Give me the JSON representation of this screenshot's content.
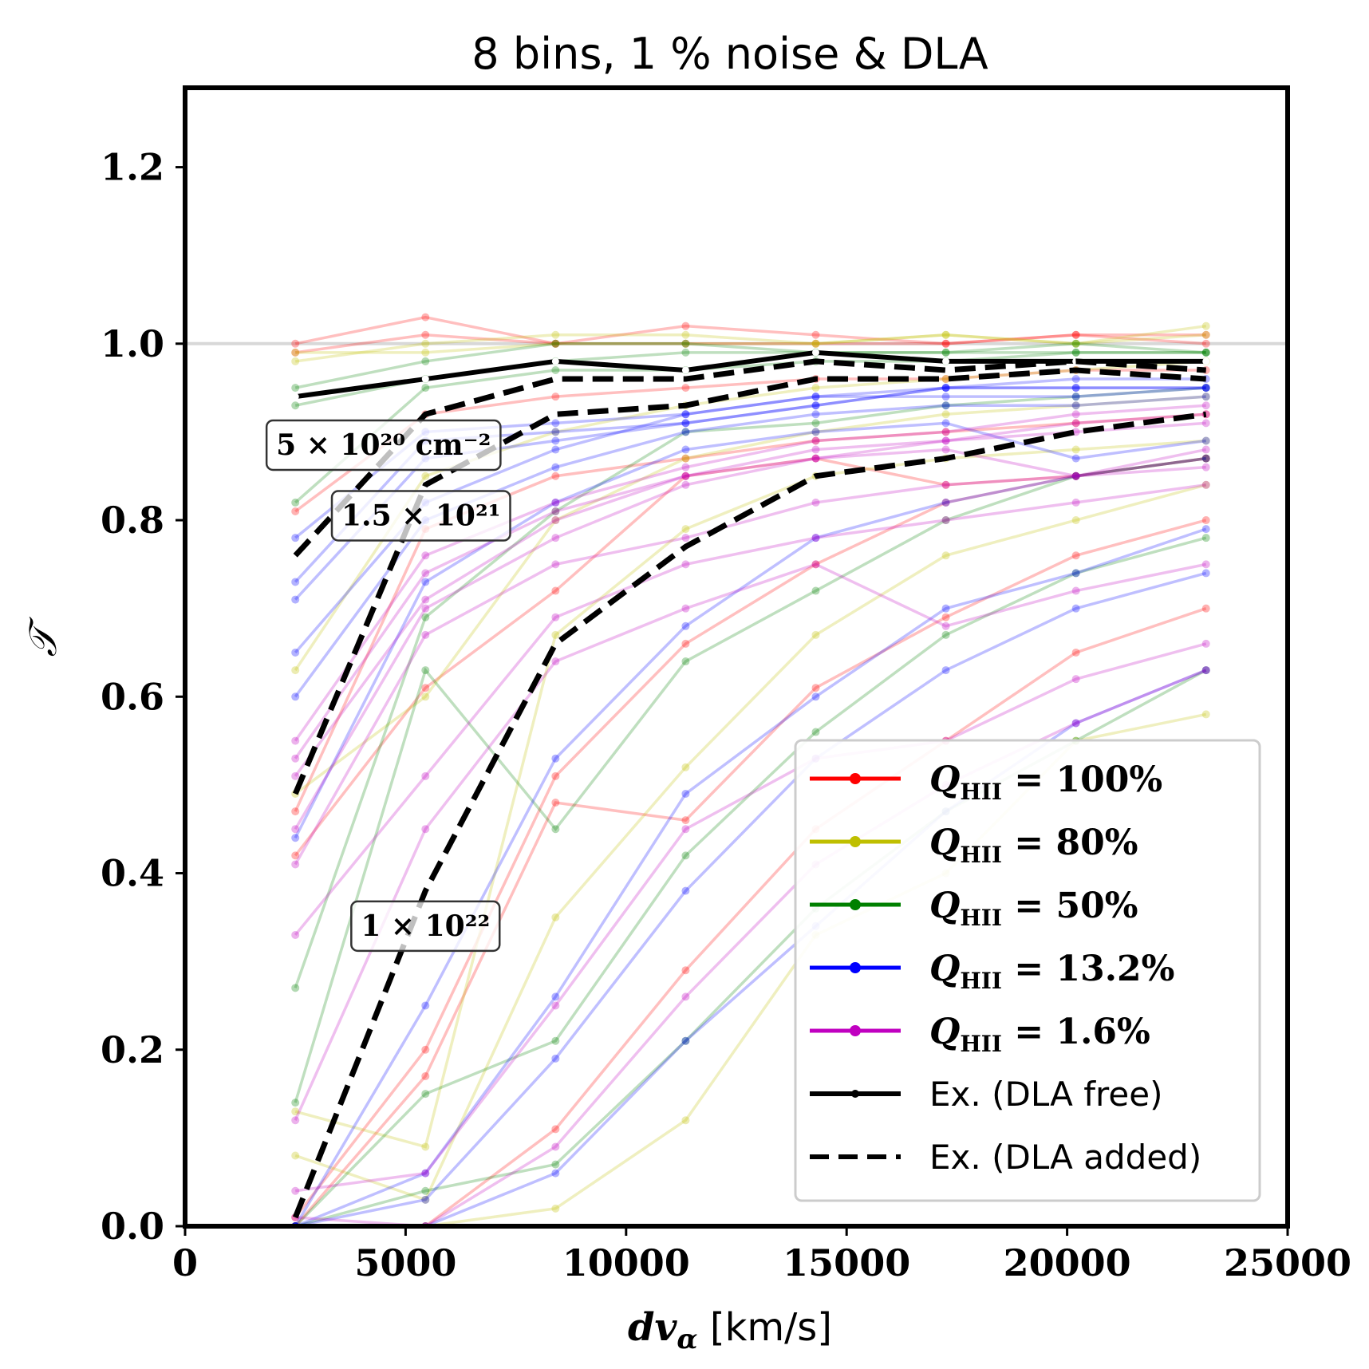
{
  "chart_data": {
    "type": "line",
    "title": "8 bins, 1 % noise & DLA",
    "xlabel": "dv_α [km/s]",
    "ylabel": "𝒯",
    "xlim": [
      0,
      25000
    ],
    "ylim": [
      0,
      1.29
    ],
    "xticks": [
      0,
      5000,
      10000,
      15000,
      20000,
      25000
    ],
    "yticks": [
      0.0,
      0.2,
      0.4,
      0.6,
      0.8,
      1.0,
      1.2
    ],
    "xtick_labels": [
      "0",
      "5000",
      "10000",
      "15000",
      "20000",
      "25000"
    ],
    "ytick_labels": [
      "0.0",
      "0.2",
      "0.4",
      "0.6",
      "0.8",
      "1.0",
      "1.2"
    ],
    "reference_line_y": 1.0,
    "grid": false,
    "legend_position": "lower-right",
    "x": [
      2500,
      5450,
      8400,
      11350,
      14300,
      17250,
      20200,
      23150
    ],
    "series": [
      {
        "name": "Q_HII = 100%",
        "legend": "Q",
        "legend_sub": "HII",
        "legend_rest": " = 100%",
        "color": "#ff0000",
        "faint": true,
        "lines": [
          [
            1.0,
            1.03,
            1.0,
            1.02,
            1.01,
            1.0,
            1.01,
            1.0
          ],
          [
            0.99,
            1.01,
            1.0,
            1.0,
            1.0,
            1.0,
            1.01,
            1.01
          ],
          [
            0.81,
            0.92,
            0.94,
            0.95,
            0.96,
            0.96,
            0.97,
            0.97
          ],
          [
            0.47,
            0.79,
            0.85,
            0.87,
            0.89,
            0.9,
            0.91,
            0.92
          ],
          [
            0.42,
            0.61,
            0.72,
            0.85,
            0.87,
            0.84,
            0.85,
            0.87
          ],
          [
            0.01,
            0.2,
            0.51,
            0.66,
            0.75,
            0.82,
            0.85,
            0.87
          ],
          [
            0.0,
            0.17,
            0.48,
            0.46,
            0.61,
            0.69,
            0.76,
            0.8
          ],
          [
            0.0,
            0.0,
            0.11,
            0.29,
            0.45,
            0.55,
            0.65,
            0.7
          ]
        ]
      },
      {
        "name": "Q_HII = 80%",
        "legend": "Q",
        "legend_sub": "HII",
        "legend_rest": " = 80%",
        "color": "#bfbf00",
        "faint": true,
        "lines": [
          [
            0.98,
            1.0,
            1.01,
            1.01,
            1.0,
            1.01,
            1.0,
            1.01
          ],
          [
            0.99,
            0.99,
            1.0,
            1.0,
            1.0,
            1.01,
            1.0,
            1.02
          ],
          [
            0.63,
            0.85,
            0.9,
            0.93,
            0.95,
            0.96,
            0.97,
            0.98
          ],
          [
            0.49,
            0.6,
            0.8,
            0.87,
            0.9,
            0.92,
            0.93,
            0.94
          ],
          [
            0.13,
            0.09,
            0.67,
            0.79,
            0.85,
            0.87,
            0.88,
            0.89
          ],
          [
            0.08,
            0.03,
            0.35,
            0.52,
            0.67,
            0.76,
            0.8,
            0.84
          ],
          [
            0.0,
            0.0,
            0.02,
            0.12,
            0.33,
            0.4,
            0.55,
            0.58
          ]
        ]
      },
      {
        "name": "Q_HII = 50%",
        "legend": "Q",
        "legend_sub": "HII",
        "legend_rest": " = 50%",
        "color": "#008000",
        "faint": true,
        "lines": [
          [
            0.95,
            0.98,
            1.0,
            1.0,
            0.99,
            0.99,
            1.0,
            0.99
          ],
          [
            0.93,
            0.96,
            0.98,
            0.99,
            0.99,
            0.99,
            0.99,
            0.99
          ],
          [
            0.82,
            0.95,
            0.97,
            0.97,
            0.98,
            0.98,
            0.99,
            0.99
          ],
          [
            0.27,
            0.69,
            0.81,
            0.9,
            0.91,
            0.93,
            0.94,
            0.95
          ],
          [
            0.14,
            0.63,
            0.45,
            0.64,
            0.72,
            0.8,
            0.85,
            0.87
          ],
          [
            0.0,
            0.15,
            0.21,
            0.42,
            0.56,
            0.67,
            0.74,
            0.78
          ],
          [
            0.0,
            0.04,
            0.07,
            0.21,
            0.36,
            0.47,
            0.55,
            0.63
          ]
        ]
      },
      {
        "name": "Q_HII = 13.2%",
        "legend": "Q",
        "legend_sub": "HII",
        "legend_rest": " = 13.2%",
        "color": "#0000ff",
        "faint": true,
        "lines": [
          [
            0.78,
            0.9,
            0.91,
            0.92,
            0.94,
            0.95,
            0.96,
            0.96
          ],
          [
            0.73,
            0.89,
            0.9,
            0.91,
            0.93,
            0.95,
            0.95,
            0.95
          ],
          [
            0.71,
            0.87,
            0.89,
            0.91,
            0.93,
            0.95,
            0.95,
            0.95
          ],
          [
            0.65,
            0.82,
            0.88,
            0.92,
            0.94,
            0.94,
            0.94,
            0.95
          ],
          [
            0.6,
            0.8,
            0.86,
            0.9,
            0.92,
            0.93,
            0.93,
            0.94
          ],
          [
            0.44,
            0.73,
            0.82,
            0.88,
            0.9,
            0.91,
            0.87,
            0.89
          ],
          [
            0.0,
            0.25,
            0.53,
            0.68,
            0.78,
            0.82,
            0.85,
            0.87
          ],
          [
            0.0,
            0.06,
            0.26,
            0.49,
            0.6,
            0.7,
            0.74,
            0.79
          ],
          [
            0.0,
            0.03,
            0.19,
            0.38,
            0.53,
            0.63,
            0.7,
            0.74
          ],
          [
            0.0,
            0.0,
            0.06,
            0.21,
            0.34,
            0.47,
            0.57,
            0.63
          ]
        ]
      },
      {
        "name": "Q_HII = 1.6%",
        "legend": "Q",
        "legend_sub": "HII",
        "legend_rest": " = 1.6%",
        "color": "#c000c0",
        "faint": true,
        "lines": [
          [
            0.55,
            0.76,
            0.82,
            0.86,
            0.89,
            0.9,
            0.92,
            0.93
          ],
          [
            0.53,
            0.74,
            0.81,
            0.85,
            0.88,
            0.89,
            0.91,
            0.92
          ],
          [
            0.51,
            0.71,
            0.8,
            0.85,
            0.87,
            0.89,
            0.9,
            0.91
          ],
          [
            0.45,
            0.7,
            0.78,
            0.84,
            0.87,
            0.88,
            0.85,
            0.88
          ],
          [
            0.41,
            0.67,
            0.75,
            0.78,
            0.82,
            0.84,
            0.85,
            0.86
          ],
          [
            0.33,
            0.51,
            0.69,
            0.75,
            0.78,
            0.8,
            0.82,
            0.84
          ],
          [
            0.12,
            0.45,
            0.64,
            0.7,
            0.75,
            0.68,
            0.72,
            0.75
          ],
          [
            0.04,
            0.06,
            0.25,
            0.45,
            0.53,
            0.55,
            0.62,
            0.66
          ],
          [
            0.01,
            0.0,
            0.09,
            0.26,
            0.41,
            0.5,
            0.57,
            0.63
          ]
        ]
      },
      {
        "name": "Ex. (DLA free)",
        "legend": "Ex. (DLA free)",
        "color": "#000000",
        "style": "solid",
        "lines": [
          [
            0.94,
            0.96,
            0.98,
            0.97,
            0.99,
            0.98,
            0.98,
            0.98
          ]
        ]
      },
      {
        "name": "Ex. (DLA added)",
        "legend": "Ex. (DLA added)",
        "color": "#000000",
        "style": "dashed",
        "lines": [
          [
            0.76,
            0.92,
            0.96,
            0.96,
            0.98,
            0.97,
            0.98,
            0.97
          ],
          [
            0.49,
            0.84,
            0.92,
            0.93,
            0.96,
            0.96,
            0.97,
            0.96
          ],
          [
            0.01,
            0.38,
            0.66,
            0.77,
            0.85,
            0.87,
            0.9,
            0.92
          ]
        ]
      }
    ],
    "annotations": [
      {
        "label": "5 × 10²⁰ cm⁻²",
        "x": 4500,
        "y": 0.885
      },
      {
        "label": "1.5 × 10²¹",
        "x": 5350,
        "y": 0.805
      },
      {
        "label": "1 × 10²²",
        "x": 5450,
        "y": 0.34
      }
    ]
  }
}
